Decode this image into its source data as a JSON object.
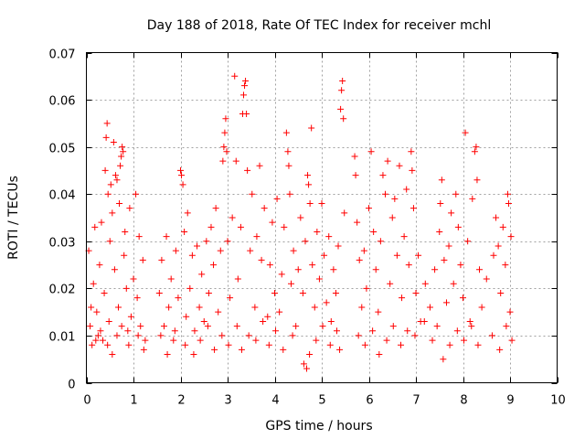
{
  "chart_data": {
    "type": "scatter",
    "title": "Day 188 of 2018, Rate Of TEC Index for receiver mchl",
    "xlabel": "GPS time / hours",
    "ylabel": "ROTI / TECUs",
    "xlim": [
      0,
      10
    ],
    "ylim": [
      0,
      0.07
    ],
    "xticks": [
      0,
      1,
      2,
      3,
      4,
      5,
      6,
      7,
      8,
      9,
      10
    ],
    "xtick_labels": [
      "0",
      "1",
      "2",
      "3",
      "4",
      "5",
      "6",
      "7",
      "8",
      "9",
      "10"
    ],
    "yticks": [
      0,
      0.01,
      0.02,
      0.03,
      0.04,
      0.05,
      0.06,
      0.07
    ],
    "ytick_labels": [
      "0",
      "0.01",
      "0.02",
      "0.03",
      "0.04",
      "0.05",
      "0.06",
      "0.07"
    ],
    "grid": true,
    "marker": "+",
    "color": "#ff0000",
    "series": [
      {
        "name": "ROTI",
        "points": [
          [
            0.05,
            0.028
          ],
          [
            0.08,
            0.012
          ],
          [
            0.12,
            0.008
          ],
          [
            0.15,
            0.021
          ],
          [
            0.18,
            0.033
          ],
          [
            0.22,
            0.015
          ],
          [
            0.25,
            0.01
          ],
          [
            0.28,
            0.025
          ],
          [
            0.32,
            0.034
          ],
          [
            0.35,
            0.009
          ],
          [
            0.38,
            0.019
          ],
          [
            0.4,
            0.045
          ],
          [
            0.42,
            0.052
          ],
          [
            0.44,
            0.055
          ],
          [
            0.46,
            0.04
          ],
          [
            0.48,
            0.013
          ],
          [
            0.5,
            0.03
          ],
          [
            0.52,
            0.042
          ],
          [
            0.55,
            0.036
          ],
          [
            0.58,
            0.051
          ],
          [
            0.6,
            0.024
          ],
          [
            0.62,
            0.044
          ],
          [
            0.65,
            0.043
          ],
          [
            0.68,
            0.016
          ],
          [
            0.7,
            0.038
          ],
          [
            0.72,
            0.046
          ],
          [
            0.74,
            0.048
          ],
          [
            0.76,
            0.05
          ],
          [
            0.78,
            0.049
          ],
          [
            0.8,
            0.027
          ],
          [
            0.82,
            0.032
          ],
          [
            0.85,
            0.02
          ],
          [
            0.88,
            0.011
          ],
          [
            0.92,
            0.037
          ],
          [
            0.95,
            0.014
          ],
          [
            1.0,
            0.022
          ],
          [
            1.05,
            0.04
          ],
          [
            1.08,
            0.018
          ],
          [
            1.12,
            0.031
          ],
          [
            1.15,
            0.012
          ],
          [
            1.2,
            0.026
          ],
          [
            1.25,
            0.009
          ],
          [
            1.55,
            0.019
          ],
          [
            1.6,
            0.026
          ],
          [
            1.65,
            0.012
          ],
          [
            1.7,
            0.031
          ],
          [
            1.75,
            0.016
          ],
          [
            1.8,
            0.022
          ],
          [
            1.85,
            0.009
          ],
          [
            1.9,
            0.028
          ],
          [
            1.95,
            0.018
          ],
          [
            2.0,
            0.045
          ],
          [
            2.02,
            0.044
          ],
          [
            2.05,
            0.042
          ],
          [
            2.08,
            0.032
          ],
          [
            2.12,
            0.014
          ],
          [
            2.15,
            0.036
          ],
          [
            2.2,
            0.02
          ],
          [
            2.25,
            0.027
          ],
          [
            2.3,
            0.011
          ],
          [
            2.35,
            0.029
          ],
          [
            2.4,
            0.016
          ],
          [
            2.45,
            0.023
          ],
          [
            2.5,
            0.013
          ],
          [
            2.55,
            0.03
          ],
          [
            2.6,
            0.019
          ],
          [
            2.65,
            0.033
          ],
          [
            2.7,
            0.025
          ],
          [
            2.75,
            0.037
          ],
          [
            2.8,
            0.015
          ],
          [
            2.85,
            0.028
          ],
          [
            2.9,
            0.047
          ],
          [
            2.92,
            0.05
          ],
          [
            2.94,
            0.053
          ],
          [
            2.96,
            0.056
          ],
          [
            2.98,
            0.049
          ],
          [
            3.0,
            0.03
          ],
          [
            3.05,
            0.018
          ],
          [
            3.1,
            0.035
          ],
          [
            3.15,
            0.065
          ],
          [
            3.18,
            0.047
          ],
          [
            3.22,
            0.022
          ],
          [
            3.28,
            0.033
          ],
          [
            3.32,
            0.057
          ],
          [
            3.34,
            0.061
          ],
          [
            3.36,
            0.063
          ],
          [
            3.38,
            0.064
          ],
          [
            3.4,
            0.057
          ],
          [
            3.42,
            0.045
          ],
          [
            3.48,
            0.028
          ],
          [
            3.52,
            0.04
          ],
          [
            3.58,
            0.016
          ],
          [
            3.62,
            0.031
          ],
          [
            3.68,
            0.046
          ],
          [
            3.72,
            0.026
          ],
          [
            3.78,
            0.037
          ],
          [
            3.85,
            0.014
          ],
          [
            3.9,
            0.025
          ],
          [
            3.95,
            0.034
          ],
          [
            4.0,
            0.019
          ],
          [
            4.05,
            0.039
          ],
          [
            4.1,
            0.015
          ],
          [
            4.15,
            0.023
          ],
          [
            4.2,
            0.033
          ],
          [
            4.25,
            0.053
          ],
          [
            4.28,
            0.049
          ],
          [
            4.3,
            0.046
          ],
          [
            4.32,
            0.04
          ],
          [
            4.35,
            0.021
          ],
          [
            4.4,
            0.028
          ],
          [
            4.45,
            0.012
          ],
          [
            4.5,
            0.024
          ],
          [
            4.55,
            0.035
          ],
          [
            4.6,
            0.019
          ],
          [
            4.65,
            0.03
          ],
          [
            4.7,
            0.044
          ],
          [
            4.72,
            0.042
          ],
          [
            4.75,
            0.038
          ],
          [
            4.78,
            0.054
          ],
          [
            4.8,
            0.025
          ],
          [
            4.85,
            0.016
          ],
          [
            4.9,
            0.032
          ],
          [
            4.95,
            0.022
          ],
          [
            5.0,
            0.038
          ],
          [
            5.05,
            0.027
          ],
          [
            5.1,
            0.017
          ],
          [
            5.15,
            0.031
          ],
          [
            5.2,
            0.013
          ],
          [
            5.25,
            0.024
          ],
          [
            5.3,
            0.019
          ],
          [
            5.35,
            0.029
          ],
          [
            5.4,
            0.058
          ],
          [
            5.42,
            0.062
          ],
          [
            5.44,
            0.064
          ],
          [
            5.46,
            0.056
          ],
          [
            5.48,
            0.036
          ],
          [
            5.7,
            0.048
          ],
          [
            5.72,
            0.044
          ],
          [
            5.75,
            0.034
          ],
          [
            5.8,
            0.026
          ],
          [
            5.85,
            0.016
          ],
          [
            5.9,
            0.028
          ],
          [
            5.95,
            0.02
          ],
          [
            6.0,
            0.037
          ],
          [
            6.05,
            0.049
          ],
          [
            6.1,
            0.032
          ],
          [
            6.15,
            0.024
          ],
          [
            6.2,
            0.015
          ],
          [
            6.25,
            0.03
          ],
          [
            6.3,
            0.044
          ],
          [
            6.35,
            0.04
          ],
          [
            6.4,
            0.047
          ],
          [
            6.45,
            0.021
          ],
          [
            6.5,
            0.035
          ],
          [
            6.55,
            0.039
          ],
          [
            6.6,
            0.027
          ],
          [
            6.65,
            0.046
          ],
          [
            6.7,
            0.018
          ],
          [
            6.75,
            0.031
          ],
          [
            6.8,
            0.041
          ],
          [
            6.85,
            0.025
          ],
          [
            6.9,
            0.049
          ],
          [
            6.92,
            0.045
          ],
          [
            6.95,
            0.037
          ],
          [
            7.0,
            0.019
          ],
          [
            7.05,
            0.027
          ],
          [
            7.1,
            0.013
          ],
          [
            7.2,
            0.021
          ],
          [
            7.3,
            0.016
          ],
          [
            7.4,
            0.024
          ],
          [
            7.45,
            0.012
          ],
          [
            7.5,
            0.032
          ],
          [
            7.52,
            0.038
          ],
          [
            7.55,
            0.043
          ],
          [
            7.6,
            0.026
          ],
          [
            7.65,
            0.017
          ],
          [
            7.7,
            0.029
          ],
          [
            7.75,
            0.036
          ],
          [
            7.8,
            0.021
          ],
          [
            7.85,
            0.04
          ],
          [
            7.9,
            0.033
          ],
          [
            7.95,
            0.025
          ],
          [
            8.0,
            0.018
          ],
          [
            8.05,
            0.053
          ],
          [
            8.1,
            0.03
          ],
          [
            8.15,
            0.013
          ],
          [
            8.2,
            0.039
          ],
          [
            8.25,
            0.049
          ],
          [
            8.28,
            0.05
          ],
          [
            8.3,
            0.043
          ],
          [
            8.35,
            0.024
          ],
          [
            8.4,
            0.016
          ],
          [
            8.5,
            0.022
          ],
          [
            8.65,
            0.027
          ],
          [
            8.7,
            0.035
          ],
          [
            8.75,
            0.029
          ],
          [
            8.8,
            0.019
          ],
          [
            8.85,
            0.033
          ],
          [
            8.9,
            0.025
          ],
          [
            8.95,
            0.04
          ],
          [
            8.97,
            0.038
          ],
          [
            9.0,
            0.015
          ],
          [
            9.02,
            0.031
          ],
          [
            0.1,
            0.016
          ],
          [
            0.2,
            0.009
          ],
          [
            0.3,
            0.011
          ],
          [
            0.45,
            0.008
          ],
          [
            0.55,
            0.006
          ],
          [
            0.65,
            0.01
          ],
          [
            0.75,
            0.012
          ],
          [
            0.9,
            0.008
          ],
          [
            1.1,
            0.01
          ],
          [
            1.22,
            0.007
          ],
          [
            1.58,
            0.01
          ],
          [
            1.72,
            0.006
          ],
          [
            1.88,
            0.011
          ],
          [
            2.1,
            0.008
          ],
          [
            2.28,
            0.006
          ],
          [
            2.42,
            0.009
          ],
          [
            2.58,
            0.012
          ],
          [
            2.72,
            0.007
          ],
          [
            2.88,
            0.01
          ],
          [
            3.02,
            0.008
          ],
          [
            3.2,
            0.012
          ],
          [
            3.3,
            0.007
          ],
          [
            3.45,
            0.01
          ],
          [
            3.6,
            0.009
          ],
          [
            3.75,
            0.013
          ],
          [
            3.88,
            0.008
          ],
          [
            4.02,
            0.011
          ],
          [
            4.18,
            0.007
          ],
          [
            4.38,
            0.01
          ],
          [
            4.62,
            0.004
          ],
          [
            4.68,
            0.003
          ],
          [
            4.74,
            0.006
          ],
          [
            4.88,
            0.009
          ],
          [
            5.02,
            0.012
          ],
          [
            5.18,
            0.008
          ],
          [
            5.32,
            0.011
          ],
          [
            5.38,
            0.007
          ],
          [
            5.78,
            0.01
          ],
          [
            5.92,
            0.008
          ],
          [
            6.08,
            0.011
          ],
          [
            6.22,
            0.006
          ],
          [
            6.38,
            0.009
          ],
          [
            6.52,
            0.012
          ],
          [
            6.68,
            0.008
          ],
          [
            6.82,
            0.011
          ],
          [
            6.98,
            0.01
          ],
          [
            7.18,
            0.013
          ],
          [
            7.35,
            0.009
          ],
          [
            7.58,
            0.005
          ],
          [
            7.72,
            0.008
          ],
          [
            7.88,
            0.011
          ],
          [
            8.02,
            0.009
          ],
          [
            8.18,
            0.012
          ],
          [
            8.32,
            0.008
          ],
          [
            8.62,
            0.01
          ],
          [
            8.78,
            0.007
          ],
          [
            8.92,
            0.012
          ],
          [
            9.04,
            0.009
          ]
        ]
      }
    ]
  }
}
